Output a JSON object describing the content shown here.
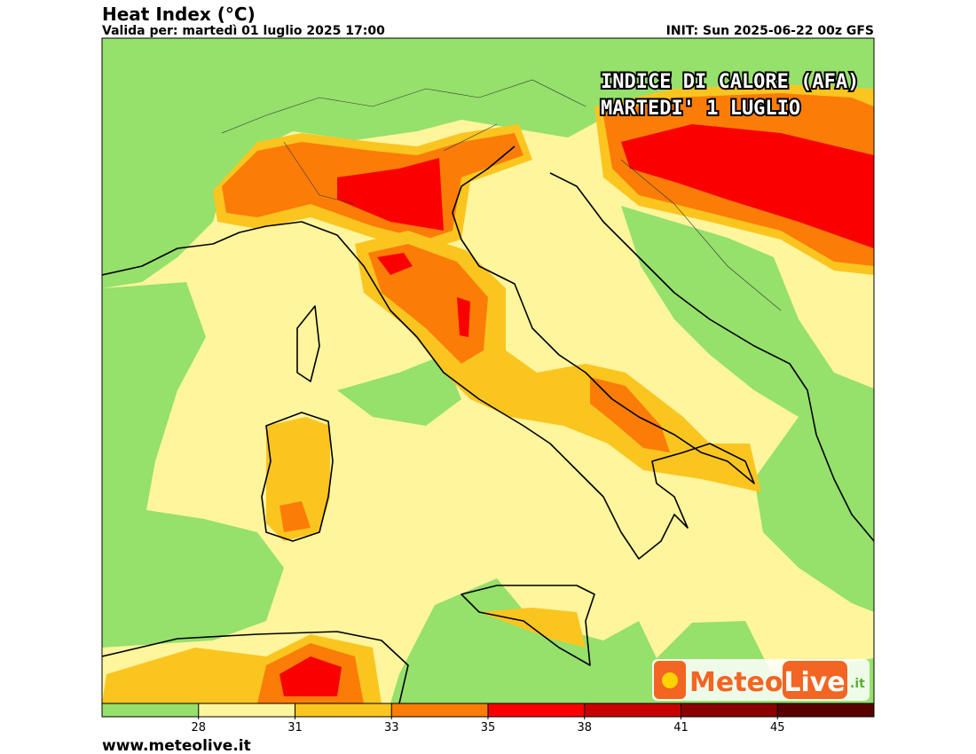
{
  "header": {
    "title": "Heat Index (°C)",
    "valid": "Valida per: martedì 01 luglio 2025 17:00",
    "init": "INIT: Sun 2025-06-22 00z GFS"
  },
  "overlay": {
    "line1": "INDICE DI CALORE (AFA)",
    "line2": "MARTEDI' 1 LUGLIO"
  },
  "logo": {
    "meteo": "Meteo",
    "live": "Live",
    "domain": ".it"
  },
  "colorbar": {
    "colors": [
      "#96e06c",
      "#fff59d",
      "#fbc520",
      "#fb7d07",
      "#fb0000",
      "#c80000",
      "#8b0000",
      "#5a0000"
    ],
    "ticks": [
      28,
      31,
      33,
      35,
      38,
      41,
      45
    ]
  },
  "footer": "www.meteolive.it"
}
